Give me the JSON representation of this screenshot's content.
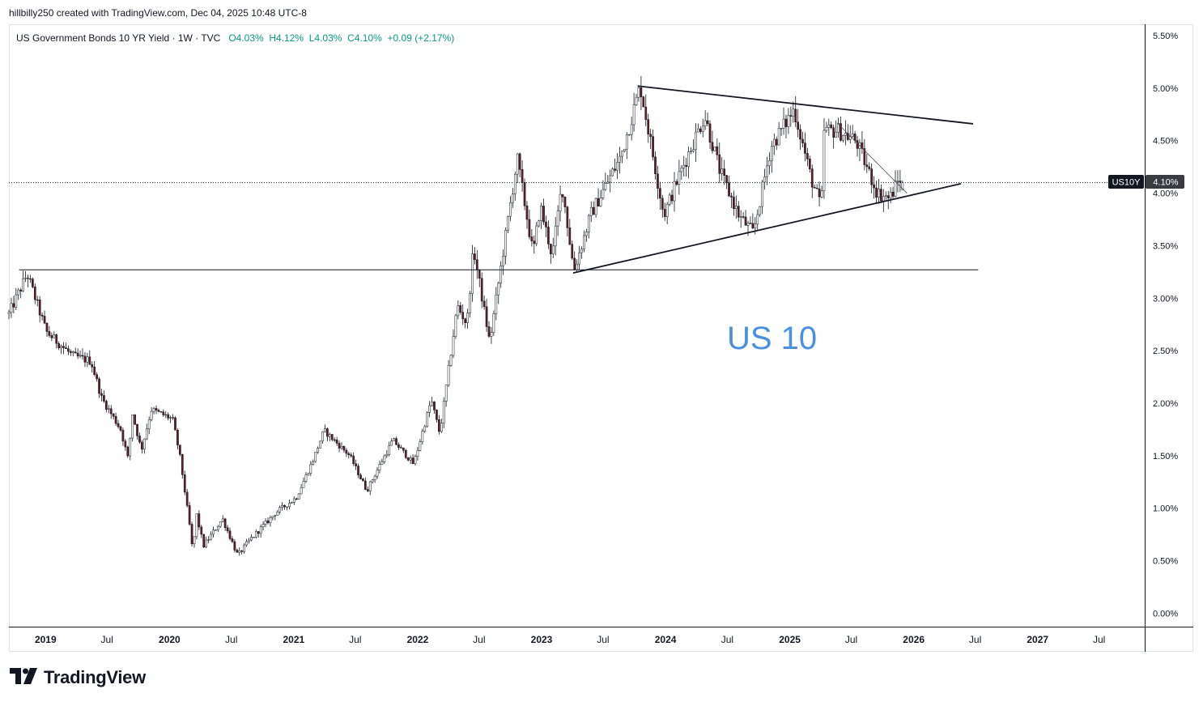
{
  "header": {
    "attribution": "hillbilly250 created with TradingView.com, Dec 04, 2025 10:48 UTC-8"
  },
  "legend": {
    "title": "US Government Bonds 10 YR Yield · 1W · TVC",
    "open": "O4.03%",
    "high": "H4.12%",
    "low": "L4.03%",
    "close": "C4.10%",
    "change": "+0.09 (+2.17%)"
  },
  "price_tag": {
    "symbol": "US10Y",
    "value": "4.10%"
  },
  "annotation_text": "US 10",
  "watermark": {
    "text": "TradingView",
    "icon": "tradingview-logo-icon"
  },
  "colors": {
    "up": "#ffffff",
    "down": "#5d1f22",
    "wick": "#131722",
    "annotation": "#4a90e2",
    "axis_text": "#131722"
  },
  "chart_data": {
    "type": "candlestick",
    "symbol": "US10Y",
    "interval": "1W",
    "x_axis": {
      "tick_labels": [
        "2019",
        "Jul",
        "2020",
        "Jul",
        "2021",
        "Jul",
        "2022",
        "Jul",
        "2023",
        "Jul",
        "2024",
        "Jul",
        "2025",
        "Jul",
        "2026",
        "Jul",
        "2027",
        "Jul"
      ],
      "tick_dates": [
        "2019-01-01",
        "2019-07-01",
        "2020-01-01",
        "2020-07-01",
        "2021-01-01",
        "2021-07-01",
        "2022-01-01",
        "2022-07-01",
        "2023-01-01",
        "2023-07-01",
        "2024-01-01",
        "2024-07-01",
        "2025-01-01",
        "2025-07-01",
        "2026-01-01",
        "2026-07-01",
        "2027-01-01",
        "2027-07-01"
      ],
      "range": [
        "2018-09-15",
        "2027-11-10"
      ]
    },
    "y_axis": {
      "tick_labels": [
        "5.50%",
        "5.00%",
        "4.50%",
        "4.00%",
        "3.50%",
        "3.00%",
        "2.50%",
        "2.00%",
        "1.50%",
        "1.00%",
        "0.50%",
        "0.00%"
      ],
      "ticks": [
        5.5,
        5.0,
        4.5,
        4.0,
        3.5,
        3.0,
        2.5,
        2.0,
        1.5,
        1.0,
        0.5,
        0.0
      ],
      "range": [
        -0.12,
        5.6
      ],
      "unit": "%"
    },
    "anchors": [
      [
        "2018-09-15",
        2.85
      ],
      [
        "2018-11-08",
        3.23
      ],
      [
        "2019-01-03",
        2.68
      ],
      [
        "2019-03-22",
        2.45
      ],
      [
        "2019-05-15",
        2.4
      ],
      [
        "2019-06-15",
        2.05
      ],
      [
        "2019-08-10",
        1.75
      ],
      [
        "2019-09-01",
        1.47
      ],
      [
        "2019-09-14",
        1.9
      ],
      [
        "2019-10-10",
        1.55
      ],
      [
        "2019-11-08",
        1.94
      ],
      [
        "2020-01-10",
        1.85
      ],
      [
        "2020-01-31",
        1.51
      ],
      [
        "2020-03-06",
        0.7
      ],
      [
        "2020-03-09",
        0.54
      ],
      [
        "2020-03-20",
        0.95
      ],
      [
        "2020-04-10",
        0.64
      ],
      [
        "2020-06-05",
        0.9
      ],
      [
        "2020-07-20",
        0.55
      ],
      [
        "2020-08-25",
        0.7
      ],
      [
        "2020-11-10",
        0.96
      ],
      [
        "2021-01-08",
        1.1
      ],
      [
        "2021-02-26",
        1.45
      ],
      [
        "2021-03-31",
        1.74
      ],
      [
        "2021-06-15",
        1.5
      ],
      [
        "2021-08-04",
        1.17
      ],
      [
        "2021-10-20",
        1.65
      ],
      [
        "2021-12-20",
        1.42
      ],
      [
        "2022-02-10",
        2.03
      ],
      [
        "2022-03-07",
        1.71
      ],
      [
        "2022-04-28",
        2.93
      ],
      [
        "2022-05-26",
        2.75
      ],
      [
        "2022-06-14",
        3.48
      ],
      [
        "2022-08-01",
        2.58
      ],
      [
        "2022-10-21",
        4.33
      ],
      [
        "2022-12-07",
        3.42
      ],
      [
        "2022-12-28",
        3.88
      ],
      [
        "2023-02-01",
        3.4
      ],
      [
        "2023-03-02",
        4.08
      ],
      [
        "2023-04-06",
        3.26
      ],
      [
        "2023-05-26",
        3.8
      ],
      [
        "2023-07-07",
        4.06
      ],
      [
        "2023-08-21",
        4.34
      ],
      [
        "2023-10-19",
        5.02
      ],
      [
        "2023-12-27",
        3.79
      ],
      [
        "2024-02-08",
        4.15
      ],
      [
        "2024-04-25",
        4.74
      ],
      [
        "2024-06-10",
        4.2
      ],
      [
        "2024-08-05",
        3.78
      ],
      [
        "2024-09-16",
        3.62
      ],
      [
        "2024-11-06",
        4.44
      ],
      [
        "2025-01-14",
        4.8
      ],
      [
        "2025-03-04",
        4.15
      ],
      [
        "2025-04-04",
        3.86
      ],
      [
        "2025-04-11",
        4.59
      ],
      [
        "2025-05-21",
        4.6
      ],
      [
        "2025-07-15",
        4.5
      ],
      [
        "2025-09-16",
        4.0
      ],
      [
        "2025-10-22",
        3.95
      ],
      [
        "2025-11-20",
        4.14
      ],
      [
        "2025-12-04",
        4.1
      ]
    ],
    "last": {
      "open": 4.03,
      "high": 4.12,
      "low": 4.03,
      "close": 4.1
    },
    "drawings": [
      {
        "kind": "trendline",
        "name": "upper-trendline",
        "from": [
          "2023-10-11",
          5.02
        ],
        "to": [
          "2026-06-25",
          4.66
        ]
      },
      {
        "kind": "trendline",
        "name": "lower-trendline",
        "from": [
          "2023-04-04",
          3.24
        ],
        "to": [
          "2026-05-20",
          4.09
        ]
      },
      {
        "kind": "trendline",
        "name": "inner-trendline",
        "from": [
          "2025-05-20",
          4.67
        ],
        "to": [
          "2025-12-12",
          4.0
        ]
      },
      {
        "kind": "horizontal",
        "name": "support-line",
        "from": [
          "2018-10-15",
          3.27
        ],
        "to": [
          "2026-07-10",
          3.27
        ]
      },
      {
        "kind": "price-line",
        "name": "last-price-line",
        "value": 4.1
      }
    ]
  }
}
